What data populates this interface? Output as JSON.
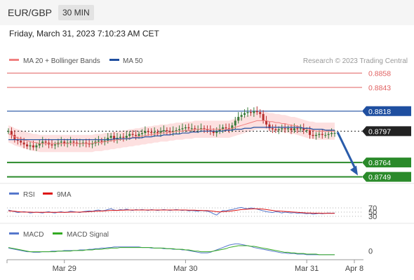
{
  "header": {
    "pair": "EUR/GBP",
    "timeframe": "30 MIN"
  },
  "datetime": "Friday, March 31, 2023 7:10:23 AM CET",
  "colors": {
    "ma20": "#f08080",
    "ma50": "#1f4fa0",
    "band": "#fde0e0",
    "up": "#2a8a2a",
    "res": "#e06060",
    "price": "#222222",
    "rsi": "#5577cc",
    "nine_ma": "#dd1111",
    "macd": "#5577cc",
    "macd_signal": "#33aa22",
    "arrow": "#2a5caa"
  },
  "main_legend": {
    "ma20": "MA 20 + Bollinger Bands",
    "ma50": "MA 50",
    "credit": "Research © 2023 Trading Central"
  },
  "rsi_legend": {
    "rsi": "RSI",
    "nine_ma": "9MA"
  },
  "macd_legend": {
    "macd": "MACD",
    "signal": "MACD Signal"
  },
  "chart_data": [
    {
      "type": "line",
      "title": "EUR/GBP 30 MIN",
      "y_range": [
        0.8745,
        0.8862
      ],
      "levels": [
        {
          "label": "0.8858",
          "value": 0.8858,
          "kind": "resistance"
        },
        {
          "label": "0.8843",
          "value": 0.8843,
          "kind": "resistance"
        },
        {
          "label": "0.8818",
          "value": 0.8818,
          "kind": "pivot"
        },
        {
          "label": "0.8797",
          "value": 0.8797,
          "kind": "price"
        },
        {
          "label": "0.8764",
          "value": 0.8764,
          "kind": "support"
        },
        {
          "label": "0.8749",
          "value": 0.8749,
          "kind": "support"
        }
      ],
      "forecast_arrow": {
        "from": 0.8796,
        "to": 0.8749
      },
      "x_ticks": [
        "Mar 29",
        "Mar 30",
        "Mar 31",
        "Apr 8"
      ],
      "close": [
        0.8797,
        0.8793,
        0.8788,
        0.8787,
        0.8785,
        0.8783,
        0.8781,
        0.8782,
        0.878,
        0.8782,
        0.8784,
        0.8786,
        0.8785,
        0.8783,
        0.8782,
        0.8783,
        0.8785,
        0.8786,
        0.8784,
        0.8785,
        0.8786,
        0.8785,
        0.8784,
        0.8784,
        0.8785,
        0.8784,
        0.8783,
        0.8784,
        0.8786,
        0.8787,
        0.8786,
        0.8787,
        0.879,
        0.8792,
        0.8788,
        0.879,
        0.8791,
        0.879,
        0.8792,
        0.8794,
        0.8793,
        0.8792,
        0.8794,
        0.8795,
        0.8797,
        0.8796,
        0.8795,
        0.8796,
        0.8795,
        0.8797,
        0.8798,
        0.8797,
        0.8796,
        0.8797,
        0.8798,
        0.8799,
        0.88,
        0.8801,
        0.88,
        0.88,
        0.8799,
        0.8799,
        0.88,
        0.8799,
        0.8798,
        0.8797,
        0.8795,
        0.8797,
        0.8799,
        0.8801,
        0.88,
        0.8799,
        0.8803,
        0.8808,
        0.8812,
        0.8814,
        0.8816,
        0.8817,
        0.8816,
        0.8818,
        0.8817,
        0.8815,
        0.8808,
        0.8804,
        0.88,
        0.8799,
        0.8798,
        0.8799,
        0.88,
        0.8799,
        0.88,
        0.8798,
        0.88,
        0.8799,
        0.88,
        0.8798,
        0.8798,
        0.8793,
        0.8792,
        0.8793,
        0.8794,
        0.8793,
        0.8793,
        0.8794,
        0.8795,
        0.8795
      ],
      "ma20": [
        0.8794,
        0.8793,
        0.8791,
        0.879,
        0.8789,
        0.8788,
        0.8787,
        0.8786,
        0.8785,
        0.8785,
        0.8784,
        0.8784,
        0.8784,
        0.8784,
        0.8784,
        0.8784,
        0.8784,
        0.8784,
        0.8784,
        0.8784,
        0.8784,
        0.8784,
        0.8784,
        0.8784,
        0.8784,
        0.8784,
        0.8784,
        0.8784,
        0.8785,
        0.8785,
        0.8785,
        0.8786,
        0.8786,
        0.8787,
        0.8787,
        0.8788,
        0.8788,
        0.8789,
        0.8789,
        0.879,
        0.879,
        0.8791,
        0.8791,
        0.8792,
        0.8792,
        0.8793,
        0.8793,
        0.8794,
        0.8794,
        0.8795,
        0.8795,
        0.8795,
        0.8796,
        0.8796,
        0.8797,
        0.8797,
        0.8797,
        0.8798,
        0.8798,
        0.8798,
        0.8799,
        0.8799,
        0.8799,
        0.8799,
        0.8799,
        0.8799,
        0.8799,
        0.8799,
        0.8799,
        0.8799,
        0.8799,
        0.8799,
        0.88,
        0.8801,
        0.8802,
        0.8803,
        0.8804,
        0.8805,
        0.8806,
        0.8807,
        0.8808,
        0.8808,
        0.8808,
        0.8808,
        0.8807,
        0.8807,
        0.8806,
        0.8806,
        0.8805,
        0.8805,
        0.8804,
        0.8803,
        0.8803,
        0.8802,
        0.8801,
        0.88,
        0.8799,
        0.8798,
        0.8798,
        0.8797,
        0.8797,
        0.8797,
        0.8797,
        0.8797,
        0.8797,
        0.8797
      ],
      "ma50": [
        0.8788,
        0.8788,
        0.8788,
        0.8788,
        0.8788,
        0.8788,
        0.8788,
        0.8788,
        0.8788,
        0.8788,
        0.8788,
        0.8788,
        0.8788,
        0.8788,
        0.8788,
        0.8788,
        0.8788,
        0.8788,
        0.8788,
        0.8788,
        0.8788,
        0.8788,
        0.8788,
        0.8788,
        0.8788,
        0.8788,
        0.8788,
        0.8788,
        0.8788,
        0.8788,
        0.8788,
        0.8788,
        0.8788,
        0.8788,
        0.8789,
        0.8789,
        0.8789,
        0.8789,
        0.8789,
        0.8789,
        0.879,
        0.879,
        0.879,
        0.879,
        0.8791,
        0.8791,
        0.8791,
        0.8792,
        0.8792,
        0.8792,
        0.8793,
        0.8793,
        0.8793,
        0.8794,
        0.8794,
        0.8794,
        0.8795,
        0.8795,
        0.8795,
        0.8796,
        0.8796,
        0.8796,
        0.8797,
        0.8797,
        0.8797,
        0.8797,
        0.8797,
        0.8797,
        0.8797,
        0.8797,
        0.8798,
        0.8798,
        0.8798,
        0.8799,
        0.8799,
        0.8799,
        0.88,
        0.88,
        0.88,
        0.8801,
        0.8801,
        0.8801,
        0.8801,
        0.8801,
        0.8801,
        0.8801,
        0.8801,
        0.8801,
        0.8801,
        0.8801,
        0.8801,
        0.8801,
        0.8801,
        0.8801,
        0.8801,
        0.88,
        0.88,
        0.88,
        0.8799,
        0.8799,
        0.8799,
        0.8799,
        0.8798,
        0.8798,
        0.8798,
        0.8798
      ],
      "band_width": 0.0009
    },
    {
      "type": "line",
      "title": "RSI",
      "y_ticks": [
        "70",
        "50",
        "30"
      ],
      "y_range": [
        0,
        100
      ],
      "series": [
        {
          "name": "RSI",
          "values": [
            60,
            56,
            52,
            48,
            50,
            52,
            50,
            46,
            48,
            50,
            48,
            46,
            50,
            52,
            48,
            46,
            50,
            52,
            48,
            50,
            54,
            52,
            50,
            48,
            52,
            54,
            56,
            54,
            58,
            60,
            56,
            58,
            62,
            66,
            60,
            58,
            62,
            60,
            64,
            60,
            58,
            62,
            60,
            62,
            60,
            58,
            62,
            60,
            58,
            60,
            62,
            60,
            58,
            60,
            62,
            60,
            58,
            60,
            56,
            58,
            56,
            54,
            58,
            56,
            54,
            50,
            42,
            36,
            48,
            58,
            56,
            60,
            62,
            66,
            70,
            72,
            68,
            66,
            70,
            68,
            64,
            60,
            56,
            52,
            50,
            48,
            52,
            50,
            46,
            50,
            48,
            46,
            48,
            44,
            46,
            44,
            42,
            44,
            40,
            42,
            44,
            42,
            44,
            46,
            44,
            46
          ]
        },
        {
          "name": "9MA",
          "values": [
            56,
            55,
            54,
            52,
            51,
            50,
            50,
            50,
            49,
            49,
            49,
            49,
            49,
            49,
            49,
            49,
            49,
            49,
            49,
            49,
            50,
            50,
            50,
            50,
            51,
            51,
            52,
            53,
            54,
            55,
            55,
            56,
            57,
            58,
            58,
            58,
            59,
            59,
            60,
            60,
            60,
            60,
            60,
            60,
            60,
            60,
            60,
            60,
            60,
            60,
            60,
            60,
            60,
            60,
            60,
            60,
            60,
            60,
            59,
            59,
            59,
            58,
            58,
            57,
            57,
            56,
            54,
            52,
            51,
            52,
            53,
            54,
            56,
            58,
            60,
            62,
            63,
            64,
            65,
            66,
            66,
            65,
            64,
            62,
            60,
            58,
            56,
            55,
            54,
            53,
            52,
            51,
            50,
            49,
            48,
            47,
            46,
            46,
            45,
            45,
            45,
            44,
            44,
            44,
            44,
            44
          ]
        }
      ]
    },
    {
      "type": "line",
      "title": "MACD",
      "y_ticks": [
        "0"
      ],
      "y_range": [
        -1.2,
        1.6
      ],
      "series": [
        {
          "name": "MACD",
          "values": [
            0.5,
            0.4,
            0.3,
            0.2,
            0.1,
            0.0,
            -0.1,
            -0.1,
            -0.2,
            -0.2,
            -0.2,
            -0.1,
            -0.1,
            -0.1,
            0.0,
            0.0,
            0.0,
            0.0,
            0.1,
            0.1,
            0.1,
            0.1,
            0.1,
            0.2,
            0.2,
            0.2,
            0.3,
            0.3,
            0.4,
            0.4,
            0.5,
            0.5,
            0.6,
            0.6,
            0.7,
            0.7,
            0.7,
            0.7,
            0.7,
            0.7,
            0.7,
            0.7,
            0.7,
            0.6,
            0.6,
            0.6,
            0.5,
            0.5,
            0.5,
            0.5,
            0.4,
            0.4,
            0.4,
            0.3,
            0.3,
            0.3,
            0.2,
            0.2,
            0.1,
            0.0,
            -0.1,
            -0.2,
            -0.3,
            -0.3,
            -0.3,
            -0.2,
            0.0,
            0.2,
            0.4,
            0.6,
            0.8,
            1.0,
            1.1,
            1.2,
            1.2,
            1.1,
            1.0,
            0.9,
            0.8,
            0.6,
            0.5,
            0.4,
            0.3,
            0.2,
            0.1,
            0.0,
            -0.1,
            -0.2,
            -0.3,
            -0.3,
            -0.4,
            -0.4,
            -0.4,
            -0.5,
            -0.5,
            -0.5,
            -0.6,
            -0.6,
            -0.6,
            -0.6,
            -0.6,
            -0.6,
            -0.6,
            -0.6,
            -0.6,
            -0.6
          ]
        },
        {
          "name": "MACD Signal",
          "values": [
            0.6,
            0.5,
            0.4,
            0.3,
            0.2,
            0.1,
            0.0,
            -0.1,
            -0.1,
            -0.1,
            -0.1,
            -0.1,
            -0.1,
            -0.1,
            -0.1,
            -0.1,
            0.0,
            0.0,
            0.0,
            0.0,
            0.0,
            0.1,
            0.1,
            0.1,
            0.1,
            0.2,
            0.2,
            0.2,
            0.3,
            0.3,
            0.3,
            0.4,
            0.4,
            0.5,
            0.5,
            0.5,
            0.6,
            0.6,
            0.6,
            0.6,
            0.6,
            0.6,
            0.6,
            0.6,
            0.6,
            0.6,
            0.6,
            0.5,
            0.5,
            0.5,
            0.5,
            0.4,
            0.4,
            0.4,
            0.3,
            0.3,
            0.3,
            0.2,
            0.2,
            0.1,
            0.0,
            0.0,
            -0.1,
            -0.1,
            -0.1,
            -0.1,
            0.0,
            0.1,
            0.2,
            0.3,
            0.4,
            0.6,
            0.7,
            0.8,
            0.9,
            0.9,
            0.9,
            0.9,
            0.8,
            0.8,
            0.7,
            0.6,
            0.5,
            0.4,
            0.3,
            0.2,
            0.1,
            0.0,
            -0.1,
            -0.2,
            -0.2,
            -0.3,
            -0.3,
            -0.4,
            -0.4,
            -0.4,
            -0.5,
            -0.5,
            -0.5,
            -0.5,
            -0.6,
            -0.6,
            -0.6,
            -0.6,
            -0.6,
            -0.6
          ]
        }
      ]
    }
  ]
}
